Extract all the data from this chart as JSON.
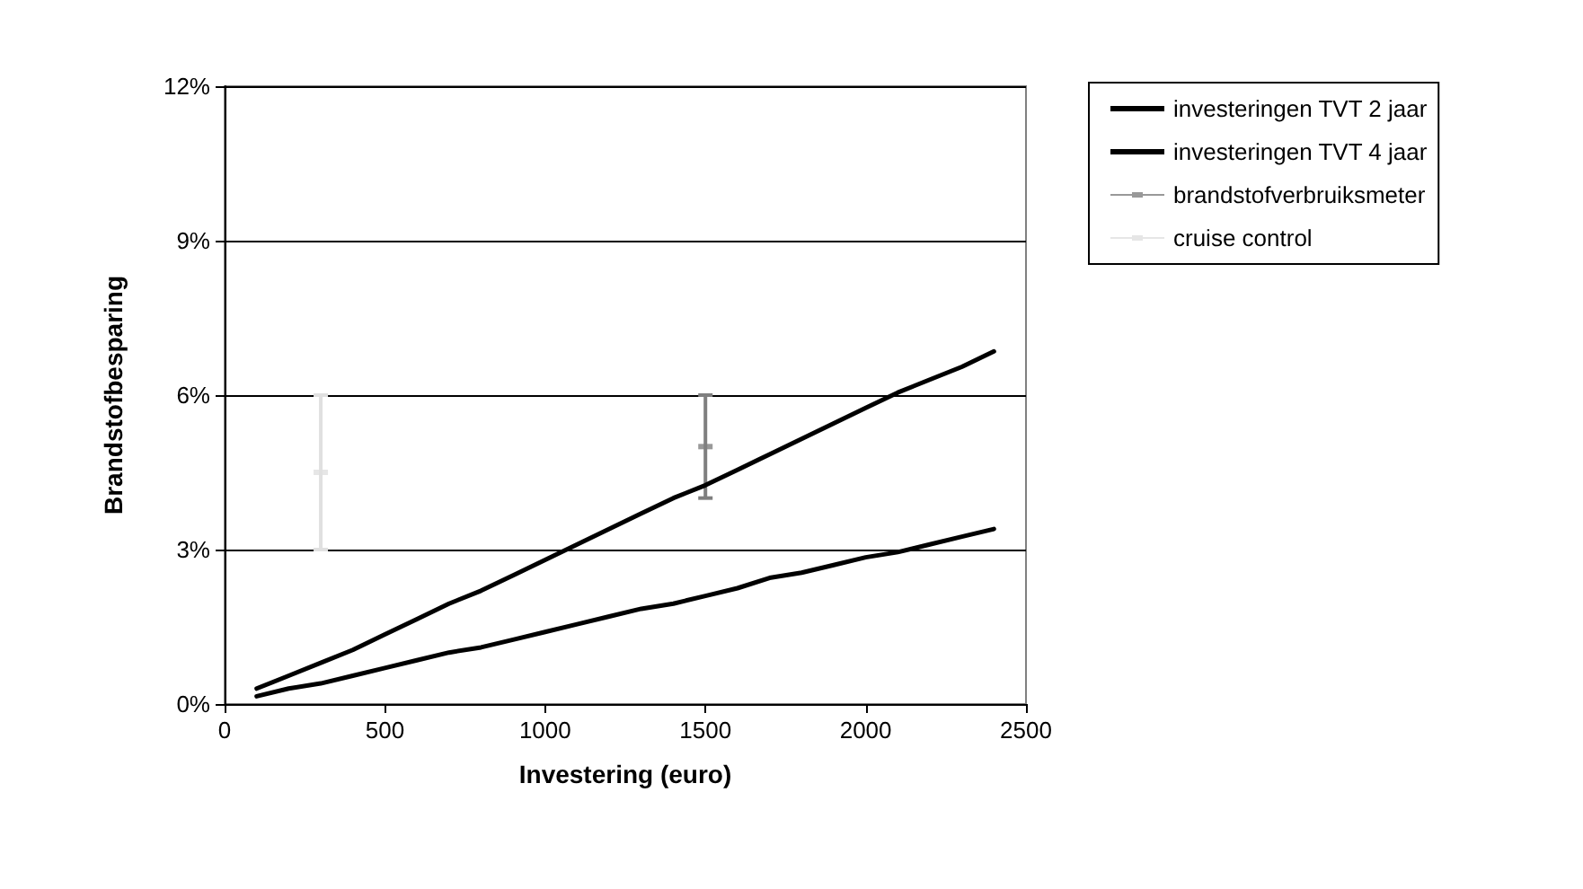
{
  "chart_data": {
    "type": "line",
    "xlabel": "Investering (euro)",
    "ylabel": "Brandstofbesparing",
    "xlim": [
      0,
      2500
    ],
    "xticks": [
      0,
      500,
      1000,
      1500,
      2000,
      2500
    ],
    "ylim": [
      0,
      12
    ],
    "yticks": [
      {
        "value": 0,
        "label": "0%"
      },
      {
        "value": 3,
        "label": "3%"
      },
      {
        "value": 6,
        "label": "6%"
      },
      {
        "value": 9,
        "label": "9%"
      },
      {
        "value": 12,
        "label": "12%"
      }
    ],
    "grid": "y",
    "legend": "right",
    "line_style": "solid",
    "series": [
      {
        "name": "investeringen TVT 2 jaar",
        "color": "#000000",
        "marker": "none",
        "x": [
          100,
          200,
          300,
          400,
          500,
          600,
          700,
          800,
          900,
          1000,
          1100,
          1200,
          1300,
          1400,
          1500,
          1600,
          1700,
          1800,
          1900,
          2000,
          2100,
          2200,
          2300,
          2400
        ],
        "values": [
          0.3,
          0.55,
          0.8,
          1.05,
          1.35,
          1.65,
          1.95,
          2.2,
          2.5,
          2.8,
          3.1,
          3.4,
          3.7,
          4.0,
          4.25,
          4.55,
          4.85,
          5.15,
          5.45,
          5.75,
          6.05,
          6.3,
          6.55,
          6.85
        ]
      },
      {
        "name": "investeringen TVT 4 jaar",
        "color": "#000000",
        "marker": "none",
        "x": [
          100,
          200,
          300,
          400,
          500,
          600,
          700,
          800,
          900,
          1000,
          1100,
          1200,
          1300,
          1400,
          1500,
          1600,
          1700,
          1800,
          1900,
          2000,
          2100,
          2200,
          2300,
          2400
        ],
        "values": [
          0.15,
          0.3,
          0.4,
          0.55,
          0.7,
          0.85,
          1.0,
          1.1,
          1.25,
          1.4,
          1.55,
          1.7,
          1.85,
          1.95,
          2.1,
          2.25,
          2.45,
          2.55,
          2.7,
          2.85,
          2.95,
          3.1,
          3.25,
          3.4
        ]
      },
      {
        "name": "brandstofverbruiksmeter",
        "type": "scatter",
        "color": "#7f7f7f",
        "marker": "square",
        "x": [
          1500
        ],
        "values": [
          5
        ],
        "errors": [
          [
            4,
            6
          ]
        ]
      },
      {
        "name": "cruise control",
        "type": "scatter",
        "color": "#e0e0e0",
        "marker": "square",
        "x": [
          300
        ],
        "values": [
          4.5
        ],
        "errors": [
          [
            3,
            6
          ]
        ]
      }
    ]
  }
}
